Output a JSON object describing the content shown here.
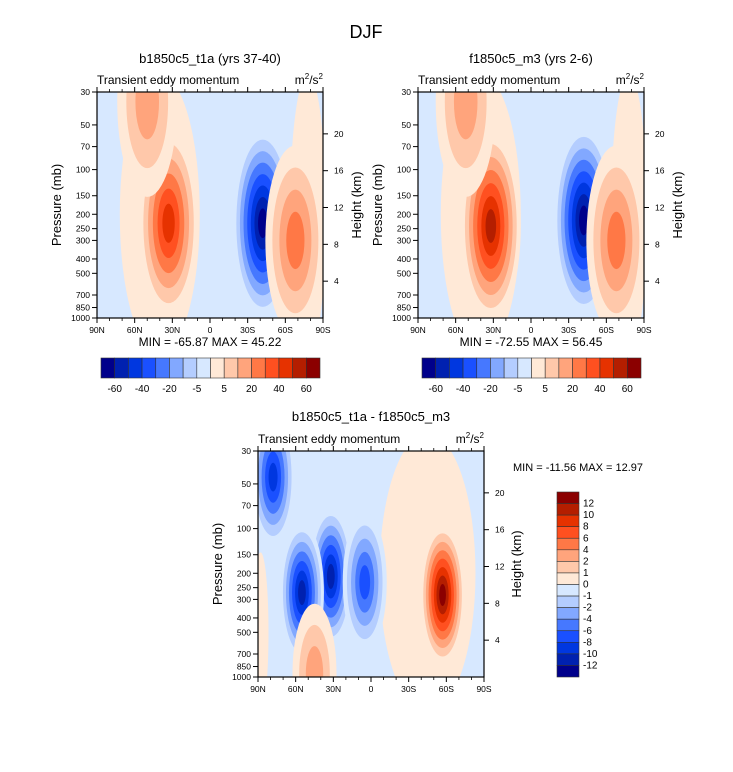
{
  "figure": {
    "title": "DJF",
    "units": "m²/s²",
    "units_main": "m",
    "units_sup1": "2",
    "units_mid": "/s",
    "units_sup2": "2"
  },
  "chart_data": [
    {
      "type": "heatmap",
      "id": "panel1",
      "title": "b1850c5_t1a (yrs 37-40)",
      "subtitle_left": "Transient eddy momentum",
      "subtitle_right": "m²/s²",
      "xlabel": "",
      "ylabel": "Pressure (mb)",
      "ylabel_right": "Height (km)",
      "x_ticklabels": [
        "90N",
        "60N",
        "30N",
        "0",
        "30S",
        "60S",
        "90S"
      ],
      "x_ticks": [
        90,
        60,
        30,
        0,
        -30,
        -60,
        -90
      ],
      "y_ticks": [
        30,
        50,
        70,
        100,
        150,
        200,
        250,
        300,
        400,
        500,
        700,
        850,
        1000
      ],
      "y_right_ticks": [
        4,
        8,
        12,
        16,
        20
      ],
      "xlim": [
        90,
        -90
      ],
      "ylim": [
        1000,
        30
      ],
      "stats": "MIN = -65.87  MAX =  45.22",
      "min": -65.87,
      "max": 45.22,
      "features": [
        {
          "lat": 33,
          "p": 230,
          "value": 45,
          "sign": "positive",
          "desc": "NH subtropical jet maximum"
        },
        {
          "lat": -42,
          "p": 230,
          "value": -65,
          "sign": "negative",
          "desc": "SH midlatitude minimum"
        },
        {
          "lat": -68,
          "p": 300,
          "value": 25,
          "sign": "positive",
          "desc": "SH high-latitude maximum"
        },
        {
          "lat": 50,
          "p": 35,
          "value": 20,
          "sign": "positive",
          "desc": "NH stratospheric maximum"
        }
      ],
      "colorbar": {
        "orientation": "horizontal",
        "labels": [
          "-60",
          "-40",
          "-20",
          "-5",
          "5",
          "20",
          "40",
          "60"
        ],
        "levels": [
          -60,
          -50,
          -40,
          -30,
          -20,
          -10,
          -5,
          0,
          5,
          10,
          20,
          30,
          40,
          50,
          60
        ]
      }
    },
    {
      "type": "heatmap",
      "id": "panel2",
      "title": "f1850c5_m3 (yrs 2-6)",
      "subtitle_left": "Transient eddy momentum",
      "subtitle_right": "m²/s²",
      "xlabel": "",
      "ylabel": "Pressure (mb)",
      "ylabel_right": "Height (km)",
      "x_ticklabels": [
        "90N",
        "60N",
        "30N",
        "0",
        "30S",
        "60S",
        "90S"
      ],
      "x_ticks": [
        90,
        60,
        30,
        0,
        -30,
        -60,
        -90
      ],
      "y_ticks": [
        30,
        50,
        70,
        100,
        150,
        200,
        250,
        300,
        400,
        500,
        700,
        850,
        1000
      ],
      "y_right_ticks": [
        4,
        8,
        12,
        16,
        20
      ],
      "xlim": [
        90,
        -90
      ],
      "ylim": [
        1000,
        30
      ],
      "stats": "MIN = -72.55  MAX =  56.45",
      "min": -72.55,
      "max": 56.45,
      "features": [
        {
          "lat": 32,
          "p": 240,
          "value": 56,
          "sign": "positive",
          "desc": "NH subtropical jet maximum"
        },
        {
          "lat": -42,
          "p": 220,
          "value": -72,
          "sign": "negative",
          "desc": "SH midlatitude minimum"
        },
        {
          "lat": -68,
          "p": 300,
          "value": 25,
          "sign": "positive",
          "desc": "SH high-latitude maximum"
        },
        {
          "lat": 52,
          "p": 35,
          "value": 20,
          "sign": "positive",
          "desc": "NH stratospheric maximum"
        }
      ],
      "colorbar": {
        "orientation": "horizontal",
        "labels": [
          "-60",
          "-40",
          "-20",
          "-5",
          "5",
          "20",
          "40",
          "60"
        ],
        "levels": [
          -60,
          -50,
          -40,
          -30,
          -20,
          -10,
          -5,
          0,
          5,
          10,
          20,
          30,
          40,
          50,
          60
        ]
      }
    },
    {
      "type": "heatmap",
      "id": "panel3",
      "title": "b1850c5_t1a - f1850c5_m3",
      "subtitle_left": "Transient eddy momentum",
      "subtitle_right": "m²/s²",
      "xlabel": "",
      "ylabel": "Pressure (mb)",
      "ylabel_right": "Height (km)",
      "x_ticklabels": [
        "90N",
        "60N",
        "30N",
        "0",
        "30S",
        "60S",
        "90S"
      ],
      "x_ticks": [
        90,
        60,
        30,
        0,
        -30,
        -60,
        -90
      ],
      "y_ticks": [
        30,
        50,
        70,
        100,
        150,
        200,
        250,
        300,
        400,
        500,
        700,
        850,
        1000
      ],
      "y_right_ticks": [
        4,
        8,
        12,
        16,
        20
      ],
      "xlim": [
        90,
        -90
      ],
      "ylim": [
        1000,
        30
      ],
      "stats": "MIN = -11.56  MAX =  12.97",
      "min": -11.56,
      "max": 12.97,
      "features": [
        {
          "lat": 32,
          "p": 210,
          "value": -11.5,
          "sign": "negative",
          "desc": "NH subtropical minimum"
        },
        {
          "lat": 55,
          "p": 270,
          "value": -10,
          "sign": "negative",
          "desc": "NH midlatitude minimum"
        },
        {
          "lat": 78,
          "p": 45,
          "value": -8,
          "sign": "negative",
          "desc": "NH polar stratosphere minimum"
        },
        {
          "lat": 5,
          "p": 230,
          "value": -6,
          "sign": "negative",
          "desc": "Equatorial minimum"
        },
        {
          "lat": -57,
          "p": 280,
          "value": 13,
          "sign": "positive",
          "desc": "SH midlatitude maximum"
        },
        {
          "lat": 45,
          "p": 950,
          "value": 4,
          "sign": "positive",
          "desc": "NH surface maximum"
        }
      ],
      "colorbar": {
        "orientation": "vertical",
        "labels": [
          "12",
          "10",
          "8",
          "6",
          "4",
          "2",
          "1",
          "0",
          "-1",
          "-2",
          "-4",
          "-6",
          "-8",
          "-10",
          "-12"
        ],
        "levels": [
          12,
          10,
          8,
          6,
          4,
          2,
          1,
          0,
          -1,
          -2,
          -4,
          -6,
          -8,
          -10,
          -12
        ]
      }
    }
  ],
  "palette": [
    "#00008b",
    "#0021b0",
    "#0037e0",
    "#1a50ff",
    "#4678ff",
    "#82a8ff",
    "#b4cdff",
    "#d7e8ff",
    "#ffe9d7",
    "#ffc8aa",
    "#ffa47c",
    "#ff7846",
    "#ff5020",
    "#e63200",
    "#b41e00",
    "#8b0000"
  ]
}
